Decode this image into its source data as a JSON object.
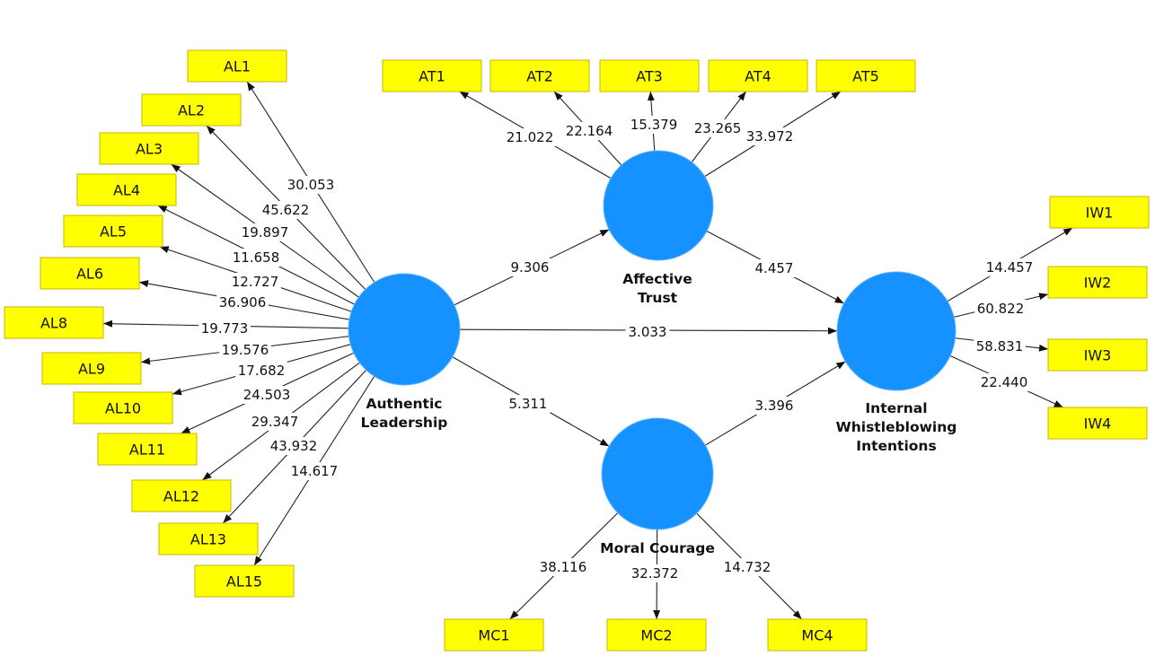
{
  "colors": {
    "construct": "#1592FF",
    "indicator_fill": "#FFFF00",
    "indicator_border": "#C8B400",
    "line": "#222222"
  },
  "constructs": [
    {
      "id": "AL",
      "label": "Authentic Leadership",
      "lines": [
        "Authentic",
        "Leadership"
      ]
    },
    {
      "id": "AT",
      "label": "Affective Trust",
      "lines": [
        "Affective",
        "Trust"
      ]
    },
    {
      "id": "MC",
      "label": "Moral Courage",
      "lines": [
        "Moral Courage"
      ]
    },
    {
      "id": "IW",
      "label": "Internal Whistleblowing Intentions",
      "lines": [
        "Internal",
        "Whistleblowing",
        "Intentions"
      ]
    }
  ],
  "indicators": [
    "AL1",
    "AL2",
    "AL3",
    "AL4",
    "AL5",
    "AL6",
    "AL8",
    "AL9",
    "AL10",
    "AL11",
    "AL12",
    "AL13",
    "AL15",
    "AT1",
    "AT2",
    "AT3",
    "AT4",
    "AT5",
    "IW1",
    "IW2",
    "IW3",
    "IW4",
    "MC1",
    "MC2",
    "MC4"
  ],
  "edges": [
    {
      "from": "AL",
      "to": "AL1",
      "value": "30.053"
    },
    {
      "from": "AL",
      "to": "AL2",
      "value": "45.622"
    },
    {
      "from": "AL",
      "to": "AL3",
      "value": "19.897"
    },
    {
      "from": "AL",
      "to": "AL4",
      "value": "11.658"
    },
    {
      "from": "AL",
      "to": "AL5",
      "value": "12.727"
    },
    {
      "from": "AL",
      "to": "AL6",
      "value": "36.906"
    },
    {
      "from": "AL",
      "to": "AL8",
      "value": "19.773"
    },
    {
      "from": "AL",
      "to": "AL9",
      "value": "19.576"
    },
    {
      "from": "AL",
      "to": "AL10",
      "value": "17.682"
    },
    {
      "from": "AL",
      "to": "AL11",
      "value": "24.503"
    },
    {
      "from": "AL",
      "to": "AL12",
      "value": "29.347"
    },
    {
      "from": "AL",
      "to": "AL13",
      "value": "43.932"
    },
    {
      "from": "AL",
      "to": "AL15",
      "value": "14.617"
    },
    {
      "from": "AT",
      "to": "AT1",
      "value": "21.022"
    },
    {
      "from": "AT",
      "to": "AT2",
      "value": "22.164"
    },
    {
      "from": "AT",
      "to": "AT3",
      "value": "15.379"
    },
    {
      "from": "AT",
      "to": "AT4",
      "value": "23.265"
    },
    {
      "from": "AT",
      "to": "AT5",
      "value": "33.972"
    },
    {
      "from": "IW",
      "to": "IW1",
      "value": "14.457"
    },
    {
      "from": "IW",
      "to": "IW2",
      "value": "60.822"
    },
    {
      "from": "IW",
      "to": "IW3",
      "value": "58.831"
    },
    {
      "from": "IW",
      "to": "IW4",
      "value": "22.440"
    },
    {
      "from": "MC",
      "to": "MC1",
      "value": "38.116"
    },
    {
      "from": "MC",
      "to": "MC2",
      "value": "32.372"
    },
    {
      "from": "MC",
      "to": "MC4",
      "value": "14.732"
    },
    {
      "from": "AL",
      "to": "AT",
      "value": "9.306"
    },
    {
      "from": "AT",
      "to": "IW",
      "value": "4.457"
    },
    {
      "from": "AL",
      "to": "IW",
      "value": "3.033"
    },
    {
      "from": "AL",
      "to": "MC",
      "value": "5.311"
    },
    {
      "from": "MC",
      "to": "IW",
      "value": "3.396"
    }
  ]
}
